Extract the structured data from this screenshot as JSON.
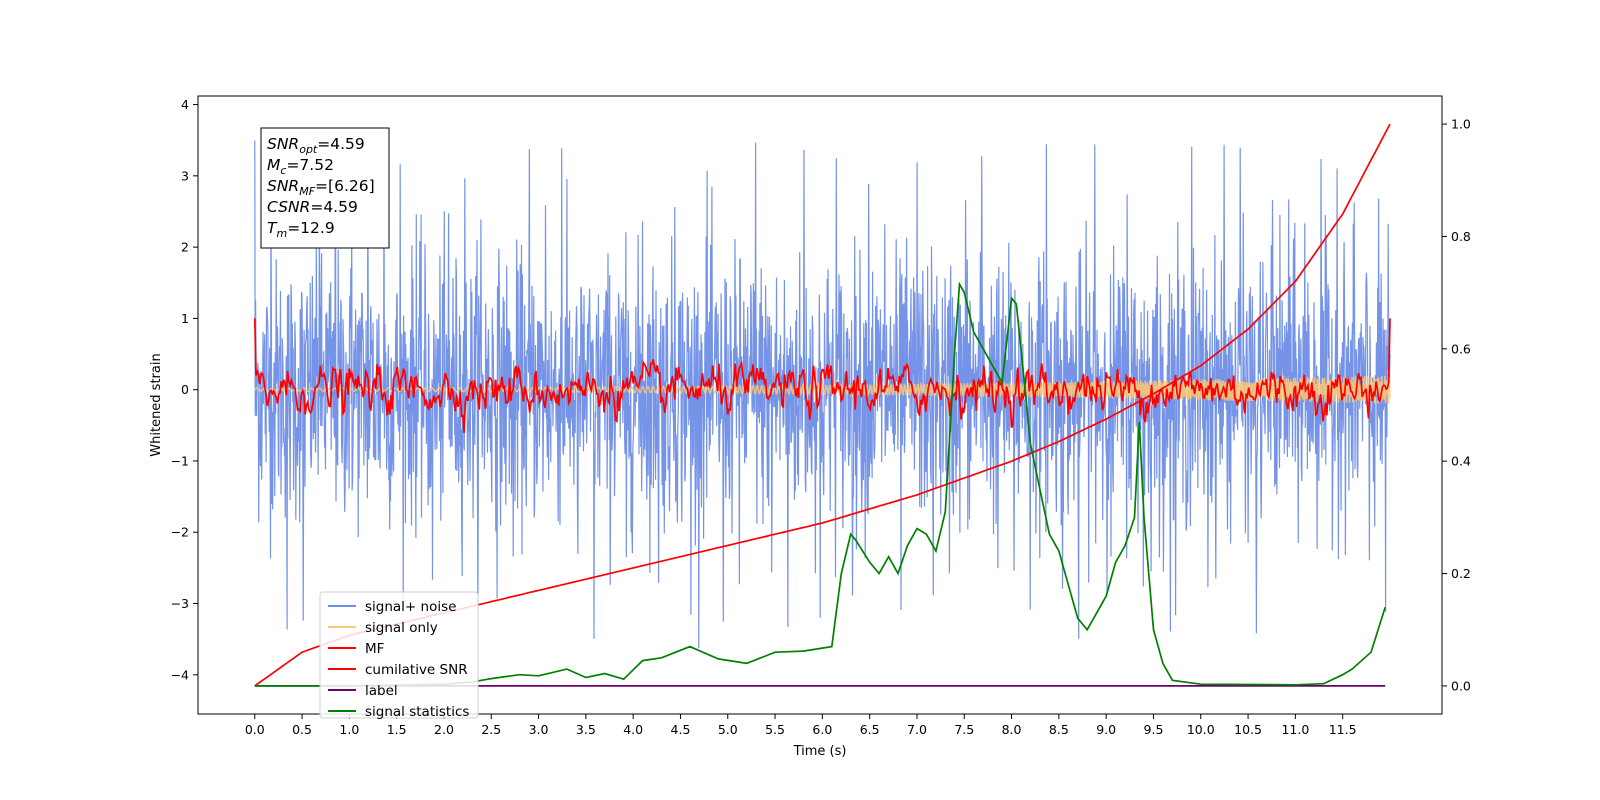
{
  "chart_data": {
    "type": "line",
    "title": "",
    "xlabel": "Time (s)",
    "ylabel": "Whitened strain",
    "y2label": "",
    "xlim": [
      -0.6,
      12.55
    ],
    "ylim": [
      -4.55,
      4.12
    ],
    "y2lim": [
      -0.05,
      1.05
    ],
    "x_ticks": [
      "0.0",
      "0.5",
      "1.0",
      "1.5",
      "2.0",
      "2.5",
      "3.0",
      "3.5",
      "4.0",
      "4.5",
      "5.0",
      "5.5",
      "6.0",
      "6.5",
      "7.0",
      "7.5",
      "8.0",
      "8.5",
      "9.0",
      "9.5",
      "10.0",
      "10.5",
      "11.0",
      "11.5"
    ],
    "y_ticks": [
      "4",
      "3",
      "2",
      "1",
      "0",
      "−1",
      "−2",
      "−3",
      "−4"
    ],
    "y2_ticks": [
      "1.0",
      "0.8",
      "0.6",
      "0.4",
      "0.2",
      "0.0"
    ],
    "grid": false,
    "legend_position": "lower-left",
    "annotation": {
      "lines": [
        {
          "base": "SNR",
          "sub": "opt",
          "rest": "=4.59"
        },
        {
          "base": "M",
          "sub": "c",
          "rest": "=7.52"
        },
        {
          "base": "SNR",
          "sub": "MF",
          "rest": "=[6.26]"
        },
        {
          "base": "CSNR",
          "sub": "",
          "rest": "=4.59"
        },
        {
          "base": "T",
          "sub": "m",
          "rest": "=12.9"
        }
      ]
    },
    "series": [
      {
        "name": "signal+ noise",
        "color": "#6f8ee6",
        "axis": "left",
        "kind": "noise",
        "x_range": [
          0,
          12.0
        ],
        "std": 0.95,
        "peak_max": 3.75,
        "peak_min": -4.15
      },
      {
        "name": "signal only",
        "color": "#ffc875",
        "axis": "left",
        "kind": "chirp",
        "x_range": [
          0,
          12.0
        ],
        "amplitude_start": 0.02,
        "amplitude_end": 0.2
      },
      {
        "name": "MF",
        "color": "#ff0000",
        "axis": "left",
        "kind": "mf",
        "x_range": [
          0,
          12.0
        ],
        "start_value": 1.0,
        "end_value": 1.0,
        "typical_amplitude": 0.15
      },
      {
        "name": "cumilative SNR",
        "color": "#ff0000",
        "axis": "right",
        "kind": "line",
        "x": [
          0,
          0.5,
          1.0,
          1.5,
          2.0,
          2.5,
          3.0,
          3.5,
          4.0,
          4.5,
          5.0,
          5.5,
          6.0,
          6.5,
          7.0,
          7.5,
          8.0,
          8.5,
          9.0,
          9.5,
          10.0,
          10.5,
          11.0,
          11.5,
          12.0
        ],
        "y": [
          0.0,
          0.06,
          0.09,
          0.11,
          0.13,
          0.15,
          0.17,
          0.19,
          0.21,
          0.23,
          0.25,
          0.27,
          0.29,
          0.315,
          0.34,
          0.37,
          0.4,
          0.435,
          0.475,
          0.52,
          0.57,
          0.635,
          0.72,
          0.84,
          1.0
        ]
      },
      {
        "name": "label",
        "color": "#6a006a",
        "axis": "right",
        "kind": "line",
        "x": [
          0,
          11.95
        ],
        "y": [
          0.0,
          0.0
        ]
      },
      {
        "name": "signal statistics",
        "color": "#008000",
        "axis": "right",
        "kind": "line",
        "x": [
          0,
          1.0,
          2.0,
          2.3,
          2.5,
          2.8,
          3.0,
          3.3,
          3.5,
          3.7,
          3.9,
          4.1,
          4.3,
          4.6,
          4.9,
          5.2,
          5.5,
          5.8,
          6.1,
          6.2,
          6.3,
          6.35,
          6.5,
          6.6,
          6.7,
          6.8,
          6.9,
          7.0,
          7.1,
          7.2,
          7.3,
          7.4,
          7.45,
          7.5,
          7.6,
          7.7,
          7.8,
          7.9,
          8.0,
          8.05,
          8.1,
          8.2,
          8.3,
          8.4,
          8.5,
          8.6,
          8.7,
          8.8,
          8.9,
          9.0,
          9.1,
          9.2,
          9.3,
          9.35,
          9.4,
          9.5,
          9.6,
          9.7,
          10.0,
          11.0,
          11.3,
          11.5,
          11.6,
          11.8,
          11.95
        ],
        "y": [
          0.0,
          0.0,
          0.003,
          0.007,
          0.013,
          0.02,
          0.018,
          0.03,
          0.015,
          0.022,
          0.012,
          0.045,
          0.05,
          0.07,
          0.048,
          0.04,
          0.06,
          0.062,
          0.07,
          0.2,
          0.27,
          0.26,
          0.22,
          0.2,
          0.23,
          0.2,
          0.25,
          0.28,
          0.27,
          0.24,
          0.31,
          0.6,
          0.715,
          0.7,
          0.63,
          0.6,
          0.57,
          0.54,
          0.69,
          0.68,
          0.6,
          0.43,
          0.35,
          0.27,
          0.24,
          0.18,
          0.12,
          0.1,
          0.13,
          0.16,
          0.22,
          0.25,
          0.3,
          0.47,
          0.3,
          0.1,
          0.04,
          0.01,
          0.003,
          0.002,
          0.004,
          0.02,
          0.03,
          0.06,
          0.14
        ]
      }
    ]
  }
}
